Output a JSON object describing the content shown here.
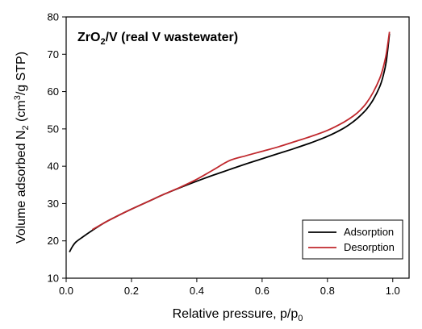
{
  "colors": {
    "adsorption": "#000000",
    "desorption": "#c0282d",
    "axis": "#000000",
    "background": "#ffffff"
  },
  "chart_data": {
    "type": "line",
    "title_main": "ZrO",
    "title_sub": "2",
    "title_rest": "/V (real V wastewater)",
    "xlabel_main": "Relative pressure, p/p",
    "xlabel_sub": "0",
    "ylabel_a": "Volume adsorbed N",
    "ylabel_sub": "2",
    "ylabel_b": " (cm",
    "ylabel_sup": "3",
    "ylabel_c": "/g STP)",
    "xlim": [
      0.0,
      1.05
    ],
    "ylim": [
      10,
      80
    ],
    "xticks": [
      0.0,
      0.2,
      0.4,
      0.6,
      0.8,
      1.0
    ],
    "xtick_labels": [
      "0.0",
      "0.2",
      "0.4",
      "0.6",
      "0.8",
      "1.0"
    ],
    "yticks": [
      10,
      20,
      30,
      40,
      50,
      60,
      70,
      80
    ],
    "ytick_labels": [
      "10",
      "20",
      "30",
      "40",
      "50",
      "60",
      "70",
      "80"
    ],
    "grid": false,
    "legend_position": "bottom-right",
    "series": [
      {
        "name": "Adsorption",
        "color": "#000000",
        "x": [
          0.01,
          0.02,
          0.03,
          0.05,
          0.08,
          0.12,
          0.16,
          0.2,
          0.25,
          0.3,
          0.35,
          0.4,
          0.45,
          0.5,
          0.55,
          0.6,
          0.65,
          0.7,
          0.75,
          0.8,
          0.85,
          0.88,
          0.9,
          0.92,
          0.94,
          0.96,
          0.97,
          0.98,
          0.99
        ],
        "y": [
          17.0,
          18.6,
          19.7,
          21.0,
          22.8,
          25.0,
          26.8,
          28.5,
          30.5,
          32.5,
          34.3,
          36.0,
          37.6,
          39.1,
          40.6,
          42.0,
          43.4,
          44.8,
          46.3,
          48.0,
          50.2,
          52.0,
          53.5,
          55.3,
          57.8,
          61.3,
          64.0,
          68.0,
          75.5
        ]
      },
      {
        "name": "Desorption",
        "color": "#c0282d",
        "x": [
          0.08,
          0.12,
          0.16,
          0.2,
          0.25,
          0.3,
          0.35,
          0.4,
          0.45,
          0.5,
          0.55,
          0.6,
          0.65,
          0.7,
          0.75,
          0.8,
          0.85,
          0.88,
          0.9,
          0.92,
          0.94,
          0.96,
          0.97,
          0.98,
          0.99
        ],
        "y": [
          23.0,
          25.0,
          26.8,
          28.5,
          30.5,
          32.5,
          34.4,
          36.5,
          39.0,
          41.5,
          42.8,
          44.0,
          45.2,
          46.6,
          48.0,
          49.6,
          51.8,
          53.5,
          55.0,
          57.0,
          59.8,
          63.5,
          66.2,
          70.0,
          76.0
        ]
      }
    ]
  }
}
